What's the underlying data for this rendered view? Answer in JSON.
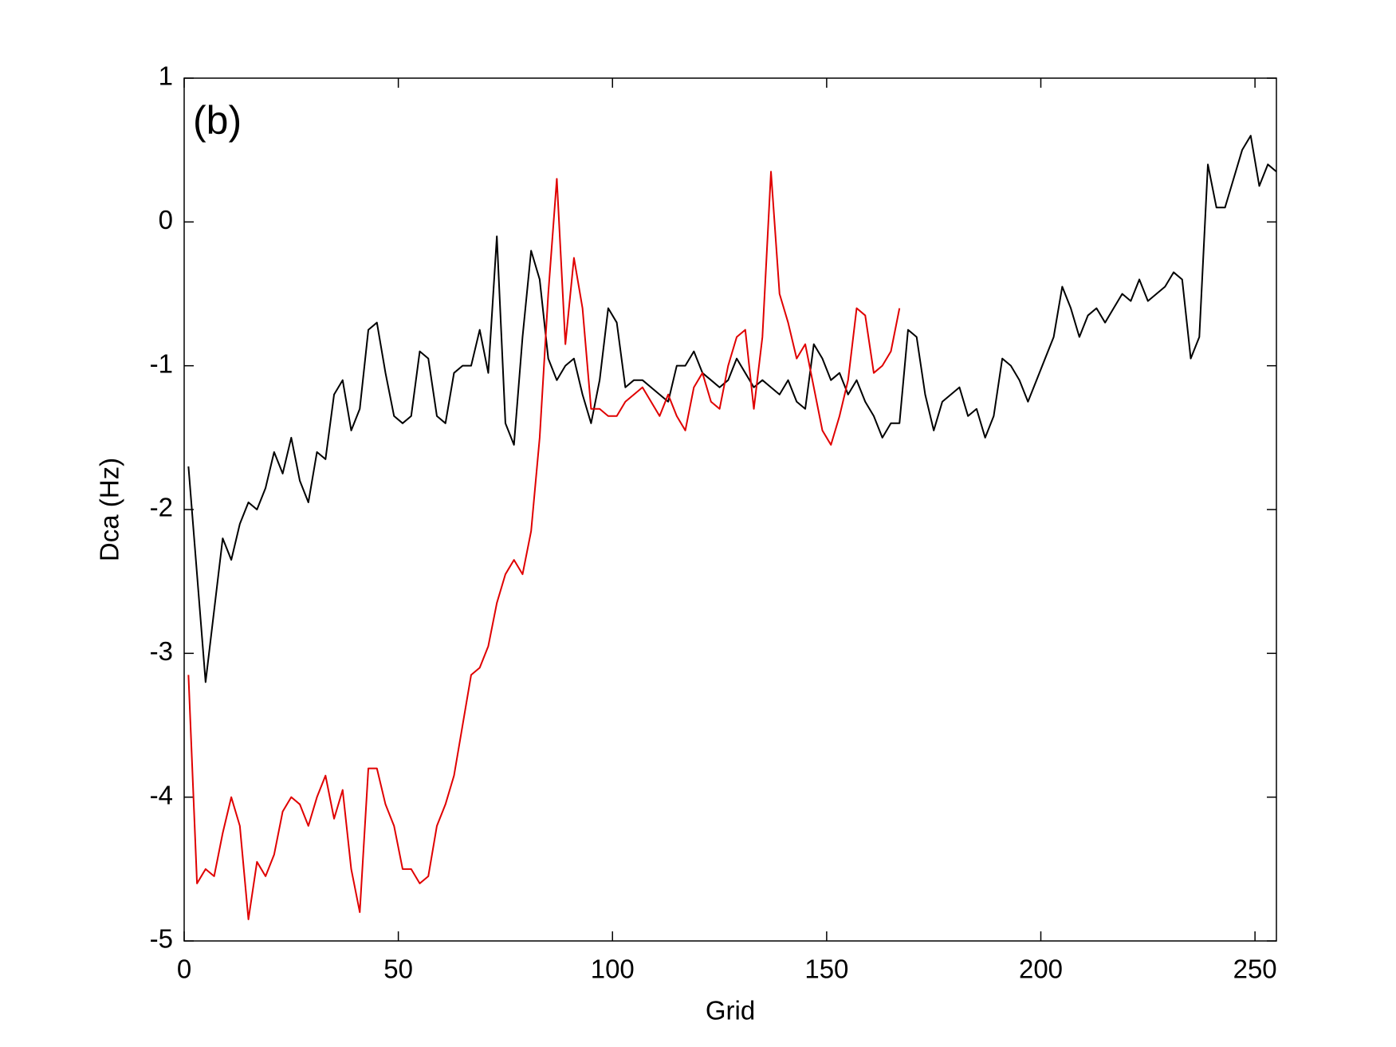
{
  "chart_data": {
    "type": "line",
    "annotation": "(b)",
    "x_label": "Grid",
    "y_label": "Dca (Hz)",
    "x": [
      1,
      3,
      5,
      7,
      9,
      11,
      13,
      15,
      17,
      19,
      21,
      23,
      25,
      27,
      29,
      31,
      33,
      35,
      37,
      39,
      41,
      43,
      45,
      47,
      49,
      51,
      53,
      55,
      57,
      59,
      61,
      63,
      65,
      67,
      69,
      71,
      73,
      75,
      77,
      79,
      81,
      83,
      85,
      87,
      89,
      91,
      93,
      95,
      97,
      99,
      101,
      103,
      105,
      107,
      109,
      111,
      113,
      115,
      117,
      119,
      121,
      123,
      125,
      127,
      129,
      131,
      133,
      135,
      137,
      139,
      141,
      143,
      145,
      147,
      149,
      151,
      153,
      155,
      157,
      159,
      161,
      163,
      165,
      167,
      169,
      171,
      173,
      175,
      177,
      179,
      181,
      183,
      185,
      187,
      189,
      191,
      193,
      195,
      197,
      199,
      201,
      203,
      205,
      207,
      209,
      211,
      213,
      215,
      217,
      219,
      221,
      223,
      225,
      227,
      229,
      231,
      233,
      235,
      237,
      239,
      241,
      243,
      245,
      247,
      249,
      251,
      253,
      255
    ],
    "series": [
      {
        "color": "#000000",
        "values": [
          -1.7,
          -2.45,
          -3.2,
          -2.7,
          -2.2,
          -2.35,
          -2.1,
          -1.95,
          -2.0,
          -1.85,
          -1.6,
          -1.75,
          -1.5,
          -1.8,
          -1.95,
          -1.6,
          -1.65,
          -1.2,
          -1.1,
          -1.45,
          -1.3,
          -0.75,
          -0.7,
          -1.05,
          -1.35,
          -1.4,
          -1.35,
          -0.9,
          -0.95,
          -1.35,
          -1.4,
          -1.05,
          -1.0,
          -1.0,
          -0.75,
          -1.05,
          -0.1,
          -1.4,
          -1.55,
          -0.8,
          -0.2,
          -0.4,
          -0.95,
          -1.1,
          -1.0,
          -0.95,
          -1.2,
          -1.4,
          -1.1,
          -0.6,
          -0.7,
          -1.15,
          -1.1,
          -1.1,
          -1.15,
          -1.2,
          -1.25,
          -1.0,
          -1.0,
          -0.9,
          -1.05,
          -1.1,
          -1.15,
          -1.1,
          -0.95,
          -1.05,
          -1.15,
          -1.1,
          -1.15,
          -1.2,
          -1.1,
          -1.25,
          -1.3,
          -0.85,
          -0.95,
          -1.1,
          -1.05,
          -1.2,
          -1.1,
          -1.25,
          -1.35,
          -1.5,
          -1.4,
          -1.4,
          -0.75,
          -0.8,
          -1.2,
          -1.45,
          -1.25,
          -1.2,
          -1.15,
          -1.35,
          -1.3,
          -1.5,
          -1.35,
          -0.95,
          -1.0,
          -1.1,
          -1.25,
          -1.1,
          -0.95,
          -0.8,
          -0.45,
          -0.6,
          -0.8,
          -0.65,
          -0.6,
          -0.7,
          -0.6,
          -0.5,
          -0.55,
          -0.4,
          -0.55,
          -0.5,
          -0.45,
          -0.35,
          -0.4,
          -0.95,
          -0.8,
          0.4,
          0.1,
          0.1,
          0.3,
          0.5,
          0.6,
          0.25,
          0.4,
          0.35
        ]
      },
      {
        "color": "#e00000",
        "values": [
          -3.15,
          -4.6,
          -4.5,
          -4.55,
          -4.25,
          -4.0,
          -4.2,
          -4.85,
          -4.45,
          -4.55,
          -4.4,
          -4.1,
          -4.0,
          -4.05,
          -4.2,
          -4.0,
          -3.85,
          -4.15,
          -3.95,
          -4.5,
          -4.8,
          -3.8,
          -3.8,
          -4.05,
          -4.2,
          -4.5,
          -4.5,
          -4.6,
          -4.55,
          -4.2,
          -4.05,
          -3.85,
          -3.5,
          -3.15,
          -3.1,
          -2.95,
          -2.65,
          -2.45,
          -2.35,
          -2.45,
          -2.15,
          -1.5,
          -0.5,
          0.3,
          -0.85,
          -0.25,
          -0.6,
          -1.3,
          -1.3,
          -1.35,
          -1.35,
          -1.25,
          -1.2,
          -1.15,
          -1.25,
          -1.35,
          -1.2,
          -1.35,
          -1.45,
          -1.15,
          -1.05,
          -1.25,
          -1.3,
          -1.0,
          -0.8,
          -0.75,
          -1.3,
          -0.8,
          0.35,
          -0.5,
          -0.7,
          -0.95,
          -0.85,
          -1.15,
          -1.45,
          -1.55,
          -1.35,
          -1.1,
          -0.6,
          -0.65,
          -1.05,
          -1.0,
          -0.9,
          -0.6,
          null,
          null,
          null,
          null,
          null,
          null,
          null,
          null,
          null,
          null,
          null,
          null,
          null,
          null,
          null,
          null,
          null,
          null,
          null,
          null,
          null,
          null,
          null,
          null,
          null,
          null,
          null,
          null,
          null,
          null,
          null,
          null,
          null,
          null,
          null,
          null,
          null,
          null,
          null,
          null,
          null,
          null,
          null,
          null
        ]
      }
    ],
    "xlim": [
      0,
      255
    ],
    "xticks": [
      0,
      50,
      100,
      150,
      200,
      250
    ],
    "ylim": [
      -5,
      1
    ],
    "yticks": [
      -5,
      -4,
      -3,
      -2,
      -1,
      0,
      1
    ],
    "grid": false
  }
}
